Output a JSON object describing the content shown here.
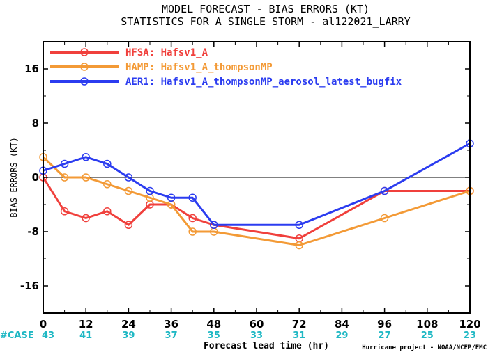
{
  "chart_data": {
    "type": "line",
    "title": "MODEL FORECAST - BIAS ERRORS (KT)",
    "subtitle": "STATISTICS FOR A SINGLE STORM - al122021_LARRY",
    "xlabel": "Forecast lead time (hr)",
    "ylabel": "BIAS ERRORS (KT)",
    "xlim": [
      0,
      120
    ],
    "ylim": [
      -20,
      20
    ],
    "x_ticks": [
      "0",
      "12",
      "24",
      "36",
      "48",
      "60",
      "72",
      "84",
      "96",
      "108",
      "120"
    ],
    "y_ticks": [
      "16",
      "8",
      "0",
      "-8",
      "-16"
    ],
    "case_label": "#CASE",
    "cases": [
      "43",
      "41",
      "39",
      "37",
      "35",
      "33",
      "31",
      "29",
      "27",
      "25",
      "23"
    ],
    "credit": "Hurricane project - NOAA/NCEP/EMC",
    "series": [
      {
        "name": "HFSA: Hafsv1_A",
        "color": "#f0403c",
        "x": [
          0,
          6,
          12,
          18,
          24,
          30,
          36,
          42,
          48,
          72,
          96,
          120
        ],
        "y": [
          0,
          -5,
          -6,
          -5,
          -7,
          -4,
          -4,
          -6,
          -7,
          -9,
          -2,
          -2
        ]
      },
      {
        "name": "HAMP: Hafsv1_A_thompsonMP",
        "color": "#f39a36",
        "x": [
          0,
          6,
          12,
          18,
          24,
          30,
          36,
          42,
          48,
          72,
          96,
          120
        ],
        "y": [
          3,
          0,
          0,
          -1,
          -2,
          -3,
          -4,
          -8,
          -8,
          -10,
          -6,
          -2
        ]
      },
      {
        "name": "AER1: Hafsv1_A_thompsonMP_aerosol_latest_bugfix",
        "color": "#2b3cf0",
        "x": [
          0,
          6,
          12,
          18,
          24,
          30,
          36,
          42,
          48,
          72,
          96,
          120
        ],
        "y": [
          1,
          2,
          3,
          2,
          0,
          -2,
          -3,
          -3,
          -7,
          -7,
          -2,
          5
        ]
      }
    ]
  }
}
